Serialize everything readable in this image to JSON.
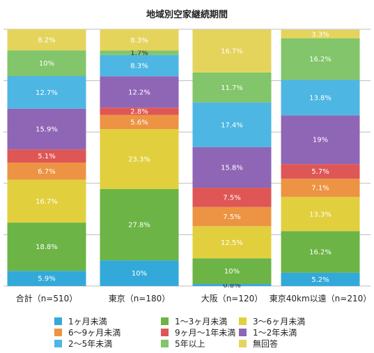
{
  "chart_data": {
    "type": "bar",
    "stacked": true,
    "title": "地域別空家継続期間",
    "ylim": [
      0,
      100
    ],
    "grid": true,
    "legend_position": "bottom",
    "categories": [
      "合計（n=510）",
      "東京（n=180）",
      "大阪（n=120）",
      "東京40km以遠（n=210）"
    ],
    "series": [
      {
        "name": "1ヶ月未満",
        "color": "#33a9d9",
        "values": [
          5.9,
          10,
          0.8,
          5.2
        ],
        "labels": [
          "5.9%",
          "10%",
          "0.8%",
          "5.2%"
        ]
      },
      {
        "name": "1〜3ヶ月未満",
        "color": "#6cb446",
        "values": [
          18.8,
          27.8,
          10,
          16.2
        ],
        "labels": [
          "18.8%",
          "27.8%",
          "10%",
          "16.2%"
        ]
      },
      {
        "name": "3〜6ヶ月未満",
        "color": "#e2cf3e",
        "values": [
          16.7,
          23.3,
          12.5,
          13.3
        ],
        "labels": [
          "16.7%",
          "23.3%",
          "12.5%",
          "13.3%"
        ]
      },
      {
        "name": "6〜9ヶ月未満",
        "color": "#ec9443",
        "values": [
          6.7,
          5.6,
          7.5,
          7.1
        ],
        "labels": [
          "6.7%",
          "5.6%",
          "7.5%",
          "7.1%"
        ]
      },
      {
        "name": "9ヶ月〜1年未満",
        "color": "#de5656",
        "values": [
          5.1,
          2.8,
          7.5,
          5.7
        ],
        "labels": [
          "5.1%",
          "2.8%",
          "7.5%",
          "5.7%"
        ]
      },
      {
        "name": "1〜2年未満",
        "color": "#8f65b5",
        "values": [
          15.9,
          12.2,
          15.8,
          19
        ],
        "labels": [
          "15.9%",
          "12.2%",
          "15.8%",
          "19%"
        ]
      },
      {
        "name": "2〜5年未満",
        "color": "#4eb6e3",
        "values": [
          12.7,
          8.3,
          17.4,
          13.8
        ],
        "labels": [
          "12.7%",
          "8.3%",
          "17.4%",
          "13.8%"
        ]
      },
      {
        "name": "5年以上",
        "color": "#82c56a",
        "values": [
          10,
          1.7,
          11.7,
          16.2
        ],
        "labels": [
          "10%",
          "1.7%",
          "11.7%",
          "16.2%"
        ]
      },
      {
        "name": "無回答",
        "color": "#e4d45c",
        "values": [
          8.2,
          8.3,
          16.7,
          3.3
        ],
        "labels": [
          "8.2%",
          "8.3%",
          "16.7%",
          "3.3%"
        ]
      }
    ]
  }
}
